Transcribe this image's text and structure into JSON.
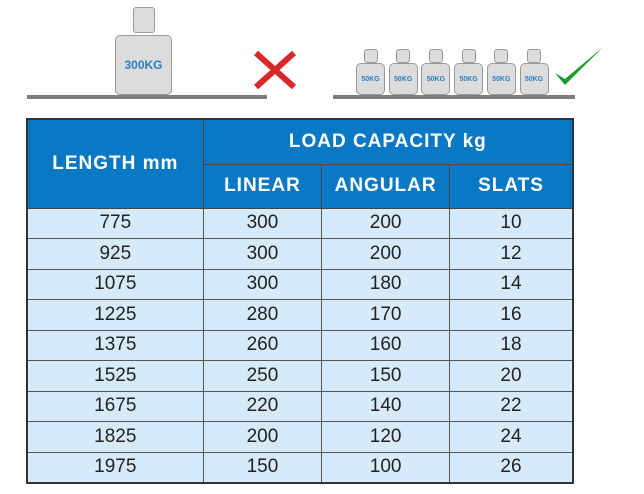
{
  "illustration": {
    "single_weight_label": "300KG",
    "small_weight_labels": [
      "50KG",
      "50KG",
      "50KG",
      "50KG",
      "50KG",
      "50KG"
    ],
    "wrong_icon": "cross-icon",
    "right_icon": "check-icon",
    "colors": {
      "cross": "#d8282a",
      "check": "#1e9a2c",
      "weight_text": "#2a7fc0"
    }
  },
  "table": {
    "length_header": "LENGTH mm",
    "capacity_header": "LOAD CAPACITY kg",
    "sub_headers": [
      "LINEAR",
      "ANGULAR",
      "SLATS"
    ],
    "rows": [
      [
        "775",
        "300",
        "200",
        "10"
      ],
      [
        "925",
        "300",
        "200",
        "12"
      ],
      [
        "1075",
        "300",
        "180",
        "14"
      ],
      [
        "1225",
        "280",
        "170",
        "16"
      ],
      [
        "1375",
        "260",
        "160",
        "18"
      ],
      [
        "1525",
        "250",
        "150",
        "20"
      ],
      [
        "1675",
        "220",
        "140",
        "22"
      ],
      [
        "1825",
        "200",
        "120",
        "24"
      ],
      [
        "1975",
        "150",
        "100",
        "26"
      ]
    ],
    "colors": {
      "header": "#0a78c2",
      "cell": "#d6eaf9"
    }
  }
}
